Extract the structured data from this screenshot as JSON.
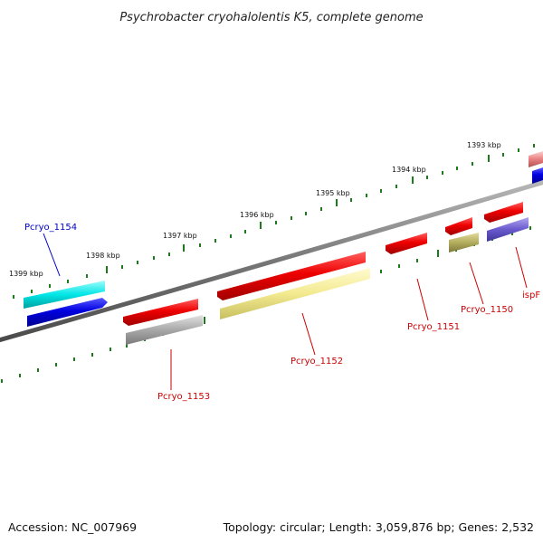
{
  "title": "Psychrobacter cryohalolentis K5, complete genome",
  "footer": {
    "accession": "Accession: NC_007969",
    "summary": "Topology: circular; Length: 3,059,876 bp; Genes: 2,532"
  },
  "tick_labels": [
    "1393 kbp",
    "1394 kbp",
    "1395 kbp",
    "1396 kbp",
    "1397 kbp",
    "1398 kbp",
    "1399 kbp"
  ],
  "gene_labels": [
    {
      "name": "Pcryo_1154",
      "color": "#0000cc"
    },
    {
      "name": "Pcryo_1153",
      "color": "#cc0000"
    },
    {
      "name": "Pcryo_1152",
      "color": "#cc0000"
    },
    {
      "name": "Pcryo_1151",
      "color": "#cc0000"
    },
    {
      "name": "Pcryo_1150",
      "color": "#cc0000"
    },
    {
      "name": "ispF",
      "color": "#cc0000"
    }
  ],
  "colors": {
    "backbone": "#7a7a7a",
    "tick": "#1d7a1d",
    "gene_red": "#e60000",
    "gene_blue": "#0000dd",
    "cyan": "#00e5e5",
    "gray": "#a8a8a8",
    "khaki": "#f3ea90",
    "olive": "#b3ad5e",
    "lavender": "#6a5acd",
    "pink": "#e88080"
  }
}
